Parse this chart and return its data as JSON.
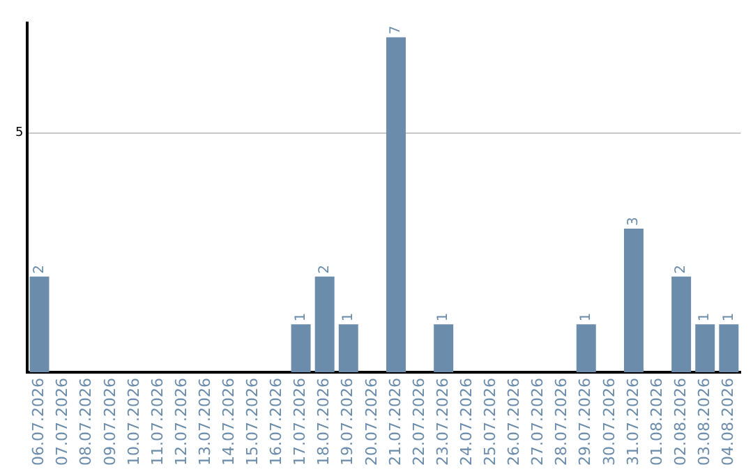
{
  "chart_data": {
    "type": "bar",
    "categories": [
      "06.07.2026",
      "07.07.2026",
      "08.07.2026",
      "09.07.2026",
      "10.07.2026",
      "11.07.2026",
      "12.07.2026",
      "13.07.2026",
      "14.07.2026",
      "15.07.2026",
      "16.07.2026",
      "17.07.2026",
      "18.07.2026",
      "19.07.2026",
      "20.07.2026",
      "21.07.2026",
      "22.07.2026",
      "23.07.2026",
      "24.07.2026",
      "25.07.2026",
      "26.07.2026",
      "27.07.2026",
      "28.07.2026",
      "29.07.2026",
      "30.07.2026",
      "31.07.2026",
      "01.08.2026",
      "02.08.2026",
      "03.08.2026",
      "04.08.2026"
    ],
    "values": [
      2,
      0,
      0,
      0,
      0,
      0,
      0,
      0,
      0,
      0,
      0,
      1,
      2,
      1,
      0,
      7,
      0,
      1,
      0,
      0,
      0,
      0,
      0,
      1,
      0,
      3,
      0,
      2,
      1,
      1
    ],
    "value_labels": [
      "2",
      null,
      null,
      null,
      null,
      null,
      null,
      null,
      null,
      null,
      null,
      "1",
      "2",
      "1",
      null,
      "7",
      null,
      "1",
      null,
      null,
      null,
      null,
      null,
      "1",
      null,
      "3",
      null,
      "2",
      "1",
      "1"
    ],
    "color": "#6b8cab",
    "ylim": [
      0,
      7.3
    ],
    "yticks": [
      5
    ],
    "grid": "y"
  }
}
